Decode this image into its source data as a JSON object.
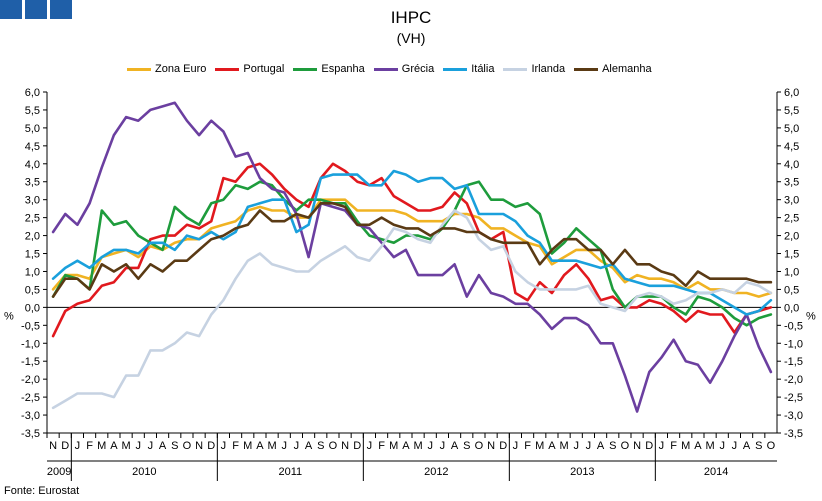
{
  "chart_data": {
    "type": "line",
    "title": "IHPC",
    "subtitle": "(VH)",
    "source": "Fonte: Eurostat",
    "ylabel_left": "%",
    "ylabel_right": "%",
    "ylim": [
      -3.5,
      6.0
    ],
    "yticks": [
      "6,0",
      "5,5",
      "5,0",
      "4,5",
      "4,0",
      "3,5",
      "3,0",
      "2,5",
      "2,0",
      "1,5",
      "1,0",
      "0,5",
      "0,0",
      "-0,5",
      "-1,0",
      "-1,5",
      "-2,0",
      "-2,5",
      "-3,0",
      "-3,5"
    ],
    "month_labels": [
      "N",
      "D",
      "J",
      "F",
      "M",
      "A",
      "M",
      "J",
      "J",
      "A",
      "S",
      "O",
      "N",
      "D",
      "J",
      "F",
      "M",
      "A",
      "M",
      "J",
      "J",
      "A",
      "S",
      "O",
      "N",
      "D",
      "J",
      "F",
      "M",
      "A",
      "M",
      "J",
      "J",
      "A",
      "S",
      "O",
      "N",
      "D",
      "J",
      "F",
      "M",
      "A",
      "M",
      "J",
      "J",
      "A",
      "S",
      "O",
      "N",
      "D",
      "J",
      "F",
      "M",
      "A",
      "M",
      "J",
      "J",
      "A",
      "S",
      "O"
    ],
    "years": [
      {
        "label": "2009",
        "start": 0,
        "count": 2
      },
      {
        "label": "2010",
        "start": 2,
        "count": 12
      },
      {
        "label": "2011",
        "start": 14,
        "count": 12
      },
      {
        "label": "2012",
        "start": 26,
        "count": 12
      },
      {
        "label": "2013",
        "start": 38,
        "count": 12
      },
      {
        "label": "2014",
        "start": 50,
        "count": 10
      }
    ],
    "grid": false,
    "legend_position": "top",
    "series": [
      {
        "name": "Zona Euro",
        "color": "#f0b323",
        "values": [
          0.5,
          0.9,
          0.9,
          0.8,
          1.4,
          1.5,
          1.6,
          1.4,
          1.7,
          1.6,
          1.8,
          1.9,
          1.9,
          2.2,
          2.3,
          2.4,
          2.7,
          2.8,
          2.7,
          2.7,
          2.5,
          2.5,
          3.0,
          3.0,
          3.0,
          2.7,
          2.7,
          2.7,
          2.7,
          2.6,
          2.4,
          2.4,
          2.4,
          2.6,
          2.6,
          2.5,
          2.2,
          2.2,
          2.0,
          1.8,
          1.7,
          1.2,
          1.4,
          1.6,
          1.6,
          1.3,
          1.1,
          0.7,
          0.9,
          0.8,
          0.8,
          0.7,
          0.5,
          0.7,
          0.5,
          0.5,
          0.4,
          0.4,
          0.3,
          0.4
        ]
      },
      {
        "name": "Portugal",
        "color": "#e1191e",
        "values": [
          -0.8,
          -0.1,
          0.1,
          0.2,
          0.6,
          0.7,
          1.1,
          1.1,
          1.9,
          2.0,
          2.0,
          2.3,
          2.2,
          2.4,
          3.6,
          3.5,
          3.9,
          4.0,
          3.7,
          3.3,
          3.0,
          2.8,
          3.6,
          4.0,
          3.8,
          3.5,
          3.4,
          3.6,
          3.1,
          2.9,
          2.7,
          2.7,
          2.8,
          3.2,
          2.9,
          2.1,
          1.9,
          2.1,
          0.4,
          0.2,
          0.7,
          0.4,
          0.9,
          1.2,
          0.8,
          0.2,
          0.3,
          0.0,
          0.0,
          0.2,
          0.1,
          -0.1,
          -0.4,
          -0.1,
          -0.2,
          -0.2,
          -0.7,
          -0.2,
          -0.1,
          0.0
        ]
      },
      {
        "name": "Espanha",
        "color": "#1e9c3c",
        "values": [
          0.3,
          0.9,
          0.8,
          0.5,
          2.7,
          2.3,
          2.4,
          2.0,
          1.8,
          1.6,
          2.8,
          2.5,
          2.3,
          2.9,
          3.0,
          3.4,
          3.3,
          3.5,
          3.4,
          3.0,
          2.7,
          3.0,
          3.0,
          2.9,
          2.9,
          2.4,
          2.0,
          1.9,
          1.8,
          2.0,
          2.0,
          1.9,
          2.2,
          2.7,
          3.4,
          3.5,
          3.0,
          3.0,
          2.8,
          2.9,
          2.6,
          1.5,
          1.8,
          2.2,
          1.9,
          1.6,
          0.5,
          0.0,
          0.3,
          0.3,
          0.3,
          0.0,
          -0.2,
          0.3,
          0.2,
          0.0,
          -0.3,
          -0.5,
          -0.3,
          -0.2
        ]
      },
      {
        "name": "Grécia",
        "color": "#6b3fa0",
        "values": [
          2.1,
          2.6,
          2.3,
          2.9,
          3.9,
          4.8,
          5.3,
          5.2,
          5.5,
          5.6,
          5.7,
          5.2,
          4.8,
          5.2,
          4.9,
          4.2,
          4.3,
          3.6,
          3.3,
          3.2,
          2.6,
          1.4,
          2.9,
          2.8,
          2.7,
          2.3,
          2.2,
          1.8,
          1.4,
          1.6,
          0.9,
          0.9,
          0.9,
          1.2,
          0.3,
          0.9,
          0.4,
          0.3,
          0.1,
          0.1,
          -0.2,
          -0.6,
          -0.3,
          -0.3,
          -0.5,
          -1.0,
          -1.0,
          -1.9,
          -2.9,
          -1.8,
          -1.4,
          -0.9,
          -1.5,
          -1.6,
          -2.1,
          -1.5,
          -0.8,
          -0.2,
          -1.1,
          -1.8
        ]
      },
      {
        "name": "Itália",
        "color": "#1aa0dc",
        "values": [
          0.8,
          1.1,
          1.3,
          1.1,
          1.4,
          1.6,
          1.6,
          1.5,
          1.8,
          1.8,
          1.6,
          2.0,
          1.9,
          2.1,
          1.9,
          2.1,
          2.8,
          2.9,
          3.0,
          3.0,
          2.1,
          2.3,
          3.6,
          3.7,
          3.7,
          3.7,
          3.4,
          3.4,
          3.8,
          3.7,
          3.5,
          3.6,
          3.6,
          3.3,
          3.4,
          2.6,
          2.6,
          2.6,
          2.4,
          2.0,
          1.8,
          1.3,
          1.3,
          1.3,
          1.2,
          1.1,
          1.2,
          0.8,
          0.7,
          0.6,
          0.6,
          0.6,
          0.5,
          0.4,
          0.4,
          0.2,
          0.0,
          -0.2,
          -0.1,
          0.2
        ]
      },
      {
        "name": "Irlanda",
        "color": "#c6d2e2",
        "values": [
          -2.8,
          -2.6,
          -2.4,
          -2.4,
          -2.4,
          -2.5,
          -1.9,
          -1.9,
          -1.2,
          -1.2,
          -1.0,
          -0.7,
          -0.8,
          -0.2,
          0.2,
          0.8,
          1.3,
          1.5,
          1.2,
          1.1,
          1.0,
          1.0,
          1.3,
          1.5,
          1.7,
          1.4,
          1.3,
          1.7,
          2.2,
          2.1,
          1.9,
          1.8,
          2.3,
          2.7,
          2.5,
          1.9,
          1.6,
          1.7,
          1.0,
          0.7,
          0.5,
          0.5,
          0.5,
          0.5,
          0.6,
          0.1,
          0.0,
          -0.1,
          0.3,
          0.4,
          0.3,
          0.1,
          0.2,
          0.4,
          0.4,
          0.5,
          0.4,
          0.7,
          0.6,
          0.4
        ]
      },
      {
        "name": "Alemanha",
        "color": "#5a3a14",
        "values": [
          0.3,
          0.8,
          0.8,
          0.5,
          1.2,
          1.0,
          1.2,
          0.8,
          1.2,
          1.0,
          1.3,
          1.3,
          1.6,
          1.9,
          2.0,
          2.2,
          2.3,
          2.7,
          2.4,
          2.4,
          2.6,
          2.5,
          2.9,
          2.9,
          2.8,
          2.3,
          2.3,
          2.5,
          2.3,
          2.2,
          2.2,
          2.0,
          2.2,
          2.2,
          2.1,
          2.1,
          1.9,
          1.8,
          1.8,
          1.8,
          1.2,
          1.6,
          1.9,
          1.9,
          1.6,
          1.6,
          1.2,
          1.6,
          1.2,
          1.2,
          1.0,
          0.9,
          0.6,
          1.0,
          0.8,
          0.8,
          0.8,
          0.8,
          0.7,
          0.7
        ]
      }
    ]
  }
}
